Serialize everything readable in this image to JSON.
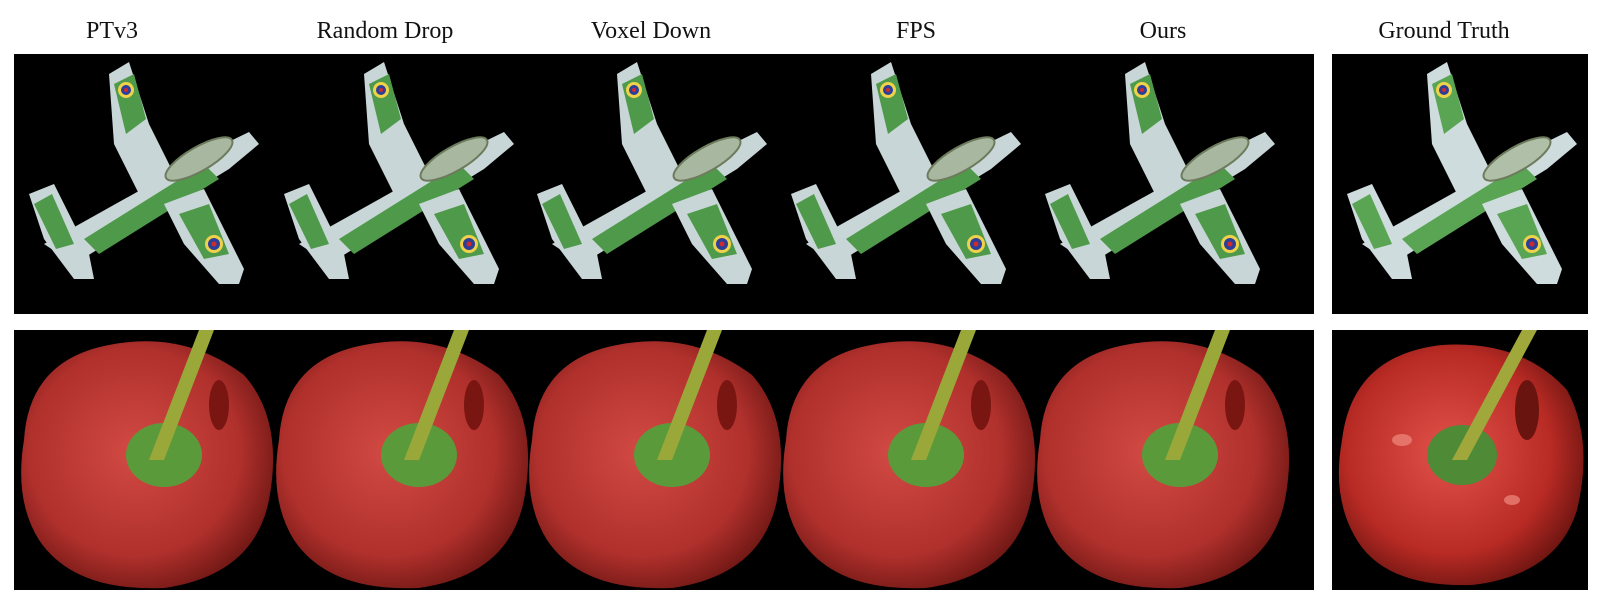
{
  "columns": [
    {
      "label": "PTv3"
    },
    {
      "label": "Random Drop"
    },
    {
      "label": "Voxel Down"
    },
    {
      "label": "FPS"
    },
    {
      "label": "Ours"
    },
    {
      "label": "Ground Truth"
    }
  ],
  "rows": [
    {
      "object": "airplane"
    },
    {
      "object": "pepper"
    }
  ]
}
